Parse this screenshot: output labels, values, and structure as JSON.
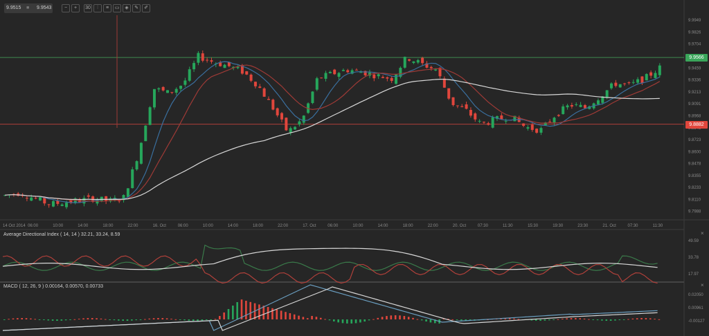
{
  "toolbar": {
    "bid": "9.9515",
    "ask": "9.9543",
    "separator_icon": "lock-icon",
    "buttons": [
      {
        "name": "zoom-out-icon",
        "glyph": "−"
      },
      {
        "name": "zoom-in-icon",
        "glyph": "+"
      },
      {
        "name": "timeframe-icon",
        "glyph": "30"
      },
      {
        "name": "chart-type-icon",
        "glyph": "⫶"
      },
      {
        "name": "indicators-icon",
        "glyph": "≡"
      },
      {
        "name": "template-icon",
        "glyph": "▭"
      },
      {
        "name": "objects-icon",
        "glyph": "◈"
      },
      {
        "name": "edit-icon",
        "glyph": "✎"
      },
      {
        "name": "draw-icon",
        "glyph": "✐"
      }
    ]
  },
  "main_pane": {
    "y_ticks": [
      "9.9949",
      "9.9826",
      "9.9704",
      "9.9459",
      "9.9336",
      "9.9213",
      "9.9091",
      "9.8968",
      "9.8845",
      "9.8723",
      "9.8600",
      "9.8478",
      "9.8355",
      "9.8233",
      "9.8110",
      "9.7988"
    ],
    "resistance_tag": "9.9566",
    "support_tag": "9.8882",
    "resistance_color": "#3aa65a",
    "support_color": "#e0463c"
  },
  "x_axis": {
    "labels": [
      "14 Oct 2014",
      "06:00",
      "10:00",
      "14:00",
      "18:00",
      "22:00",
      "16. Oct",
      "06:00",
      "10:00",
      "14:00",
      "18:00",
      "22:00",
      "17. Oct",
      "06:00",
      "10:00",
      "14:00",
      "18:00",
      "22:00",
      "20. Oct",
      "07:30",
      "11:30",
      "15:30",
      "19:30",
      "23:30",
      "21. Oct",
      "07:30",
      "11:30"
    ]
  },
  "adx_pane": {
    "title": "Average Directional Index ( 14, 14 ) 32.21, 33.24, 8.59",
    "y_ticks": [
      "49.59",
      "33.78",
      "17.97"
    ],
    "close_icon": "×"
  },
  "macd_pane": {
    "title": "MACD ( 12, 26, 9 ) 0.00164, 0.00570, 0.00733",
    "y_ticks": [
      "0.02050",
      "0.00961",
      "-0.00127"
    ],
    "close_icon": "×"
  },
  "colors": {
    "background": "#262626",
    "bull": "#26a65b",
    "bear": "#e0463c",
    "ma_fast": "#3a6f9e",
    "ma_mid": "#9e3a36",
    "ma_slow": "#d8d8d8"
  },
  "chart_data": {
    "type": "candlestick",
    "title": "",
    "symbol_quote": {
      "bid": 9.9515,
      "ask": 9.9543
    },
    "ylim": [
      9.79,
      10.0
    ],
    "horizontal_lines": [
      {
        "value": 9.9566,
        "color": "green"
      },
      {
        "value": 9.8882,
        "color": "red"
      }
    ],
    "x_labels": [
      "14 Oct 2014",
      "06:00",
      "10:00",
      "14:00",
      "18:00",
      "22:00",
      "16. Oct",
      "06:00",
      "10:00",
      "14:00",
      "18:00",
      "22:00",
      "17. Oct",
      "06:00",
      "10:00",
      "14:00",
      "18:00",
      "22:00",
      "20. Oct",
      "07:30",
      "11:30",
      "15:30",
      "19:30",
      "23:30",
      "21. Oct",
      "07:30",
      "11:30"
    ],
    "close_path_approx": [
      9.815,
      9.818,
      9.812,
      9.806,
      9.808,
      9.81,
      9.812,
      9.809,
      9.813,
      9.86,
      9.925,
      9.92,
      9.93,
      9.958,
      9.952,
      9.948,
      9.942,
      9.928,
      9.905,
      9.88,
      9.893,
      9.935,
      9.94,
      9.944,
      9.942,
      9.938,
      9.935,
      9.957,
      9.95,
      9.944,
      9.91,
      9.902,
      9.888,
      9.893,
      9.896,
      9.885,
      9.882,
      9.898,
      9.908,
      9.905,
      9.917,
      9.93,
      9.928,
      9.935,
      9.946
    ],
    "indicators": {
      "adx": {
        "params": "14,14",
        "values": [
          32.21,
          33.24,
          8.59
        ],
        "ylim": [
          10,
          60
        ]
      },
      "macd": {
        "params": "12,26,9",
        "values": [
          0.00164,
          0.0057,
          0.00733
        ],
        "ylim": [
          -0.006,
          0.028
        ]
      }
    }
  }
}
